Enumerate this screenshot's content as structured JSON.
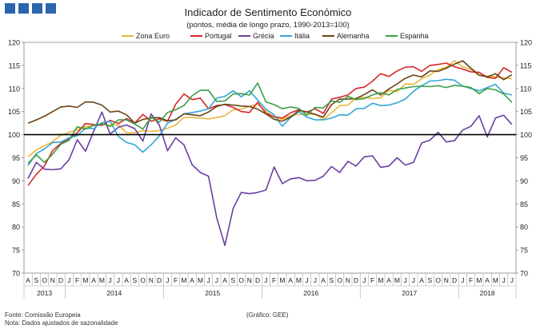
{
  "chart_data": {
    "type": "line",
    "title": "Indicador de Sentimento Económico",
    "subtitle": "(pontos, média de longo prazo, 1990-2013=100)",
    "ylim": [
      70,
      120
    ],
    "yticks": [
      70,
      75,
      80,
      85,
      90,
      95,
      100,
      105,
      110,
      115,
      120
    ],
    "reference_line": 100,
    "x": [
      "2013-08",
      "2013-09",
      "2013-10",
      "2013-11",
      "2013-12",
      "2014-01",
      "2014-02",
      "2014-03",
      "2014-04",
      "2014-05",
      "2014-06",
      "2014-07",
      "2014-08",
      "2014-09",
      "2014-10",
      "2014-11",
      "2014-12",
      "2015-01",
      "2015-02",
      "2015-03",
      "2015-04",
      "2015-05",
      "2015-06",
      "2015-07",
      "2015-08",
      "2015-09",
      "2015-10",
      "2015-11",
      "2015-12",
      "2016-01",
      "2016-02",
      "2016-03",
      "2016-04",
      "2016-05",
      "2016-06",
      "2016-07",
      "2016-08",
      "2016-09",
      "2016-10",
      "2016-11",
      "2016-12",
      "2017-01",
      "2017-02",
      "2017-03",
      "2017-04",
      "2017-05",
      "2017-06",
      "2017-07",
      "2017-08",
      "2017-09",
      "2017-10",
      "2017-11",
      "2017-12",
      "2018-01",
      "2018-02",
      "2018-03",
      "2018-04",
      "2018-05",
      "2018-06",
      "2018-07"
    ],
    "month_labels": [
      "A",
      "S",
      "O",
      "N",
      "D",
      "J",
      "F",
      "M",
      "A",
      "M",
      "J",
      "J",
      "A",
      "S",
      "O",
      "N",
      "D",
      "J",
      "F",
      "M",
      "A",
      "M",
      "J",
      "J",
      "A",
      "S",
      "O",
      "N",
      "D",
      "J",
      "F",
      "M",
      "A",
      "M",
      "J",
      "J",
      "A",
      "S",
      "O",
      "N",
      "D",
      "J",
      "F",
      "M",
      "A",
      "M",
      "J",
      "J",
      "A",
      "S",
      "O",
      "N",
      "D",
      "J",
      "F",
      "M",
      "A",
      "M",
      "J",
      "J"
    ],
    "year_labels": [
      {
        "label": "2013",
        "start": 0,
        "end": 4
      },
      {
        "label": "2014",
        "start": 5,
        "end": 16
      },
      {
        "label": "2015",
        "start": 17,
        "end": 28
      },
      {
        "label": "2016",
        "start": 29,
        "end": 40
      },
      {
        "label": "2017",
        "start": 41,
        "end": 52
      },
      {
        "label": "2018",
        "start": 53,
        "end": 59
      }
    ],
    "series": [
      {
        "name": "Zona Euro",
        "color": "#e8b83a",
        "values": [
          95.2,
          96.7,
          97.6,
          98.5,
          99.9,
          100.5,
          101.1,
          101.7,
          102.0,
          102.3,
          102.0,
          102.1,
          100.4,
          100.4,
          100.9,
          100.7,
          100.9,
          101.4,
          102.1,
          103.7,
          103.7,
          103.6,
          103.4,
          103.7,
          104.1,
          105.4,
          105.5,
          106.1,
          106.6,
          105.1,
          103.7,
          103.3,
          104.1,
          104.4,
          104.4,
          104.5,
          103.3,
          104.7,
          106.3,
          106.4,
          107.9,
          108.1,
          107.8,
          108.0,
          109.6,
          109.3,
          111.0,
          110.9,
          112.1,
          112.9,
          114.1,
          114.6,
          116.0,
          114.7,
          114.1,
          112.8,
          112.7,
          112.5,
          112.3,
          112.1
        ]
      },
      {
        "name": "Portugal",
        "color": "#d7262a",
        "values": [
          89.0,
          91.4,
          93.2,
          96.6,
          98.1,
          99.0,
          100.4,
          102.4,
          102.2,
          102.0,
          103.1,
          102.4,
          103.5,
          102.5,
          104.4,
          102.9,
          103.4,
          102.9,
          106.6,
          108.8,
          107.6,
          107.9,
          105.6,
          106.3,
          106.5,
          105.9,
          105.0,
          104.8,
          107.0,
          104.6,
          103.9,
          103.6,
          104.7,
          105.4,
          104.9,
          105.6,
          104.6,
          107.7,
          108.1,
          108.6,
          110.0,
          110.3,
          111.6,
          113.2,
          112.6,
          113.8,
          114.6,
          114.7,
          113.7,
          115.0,
          115.2,
          115.5,
          114.7,
          114.2,
          113.6,
          113.5,
          112.4,
          112.2,
          114.5,
          113.5
        ]
      },
      {
        "name": "Grécia",
        "color": "#6b3fa0",
        "values": [
          90.5,
          94.0,
          92.5,
          92.4,
          92.6,
          94.6,
          98.9,
          96.4,
          100.7,
          104.9,
          100.1,
          101.6,
          102.1,
          101.3,
          98.6,
          104.5,
          102.1,
          96.5,
          99.3,
          97.8,
          93.5,
          91.8,
          91.0,
          82.0,
          76.0,
          84.0,
          87.5,
          87.2,
          87.5,
          88.0,
          93.0,
          89.4,
          90.4,
          90.7,
          90.0,
          90.1,
          91.0,
          93.1,
          91.8,
          94.2,
          93.2,
          95.2,
          95.4,
          92.9,
          93.2,
          95.0,
          93.4,
          94.0,
          98.2,
          98.8,
          100.5,
          98.4,
          98.7,
          101.0,
          101.8,
          104.1,
          99.5,
          103.6,
          104.2,
          102.2
        ]
      },
      {
        "name": "Itália",
        "color": "#35a7d4",
        "values": [
          93.3,
          95.9,
          96.9,
          98.3,
          98.4,
          99.3,
          99.8,
          101.4,
          101.3,
          102.6,
          102.9,
          99.6,
          98.3,
          97.8,
          96.2,
          97.8,
          99.7,
          102.5,
          103.3,
          104.5,
          104.8,
          105.1,
          105.6,
          107.9,
          108.3,
          109.5,
          108.2,
          109.5,
          107.5,
          105.5,
          104.3,
          101.8,
          103.7,
          105.0,
          103.8,
          103.2,
          103.2,
          103.6,
          104.3,
          104.2,
          105.6,
          105.7,
          106.8,
          106.3,
          106.4,
          106.9,
          107.7,
          109.4,
          110.6,
          111.6,
          111.7,
          112.0,
          111.8,
          110.5,
          110.0,
          109.5,
          110.2,
          110.9,
          109.0,
          108.6
        ]
      },
      {
        "name": "Alemanha",
        "color": "#6b4418",
        "values": [
          102.5,
          103.2,
          104.0,
          105.0,
          106.0,
          106.2,
          105.9,
          107.1,
          107.0,
          106.4,
          104.9,
          105.1,
          104.3,
          102.5,
          103.3,
          103.6,
          103.7,
          103.0,
          103.2,
          104.5,
          104.3,
          104.1,
          104.9,
          106.1,
          106.6,
          106.4,
          106.2,
          106.1,
          105.5,
          104.5,
          103.3,
          102.9,
          103.8,
          105.2,
          104.9,
          104.4,
          103.8,
          106.5,
          107.7,
          107.7,
          107.8,
          108.7,
          109.7,
          108.6,
          109.9,
          111.0,
          112.2,
          112.9,
          112.5,
          113.8,
          113.7,
          114.4,
          115.3,
          116.0,
          114.4,
          112.9,
          112.5,
          113.2,
          111.9,
          113.0
        ]
      },
      {
        "name": "Espanha",
        "color": "#3c9e45",
        "values": [
          93.8,
          95.6,
          94.0,
          95.8,
          97.9,
          98.8,
          101.7,
          101.2,
          102.0,
          102.4,
          101.8,
          103.2,
          103.2,
          102.3,
          101.2,
          103.8,
          102.7,
          104.8,
          105.4,
          106.3,
          108.4,
          109.6,
          109.6,
          107.2,
          107.3,
          108.8,
          108.9,
          108.6,
          111.2,
          107.1,
          106.5,
          105.6,
          106.0,
          105.7,
          104.2,
          105.9,
          105.8,
          107.3,
          107.0,
          108.3,
          107.6,
          107.8,
          108.6,
          109.1,
          108.6,
          109.8,
          110.1,
          110.4,
          110.5,
          110.4,
          110.6,
          110.2,
          110.7,
          110.5,
          110.2,
          108.9,
          110.0,
          109.7,
          108.8,
          107.0
        ]
      }
    ]
  },
  "footer": {
    "source": "Fonte: Comissão Europeia",
    "note": "Nota: Dados ajustados de sazonalidade",
    "credit": "(Gráfico: GEE)"
  }
}
